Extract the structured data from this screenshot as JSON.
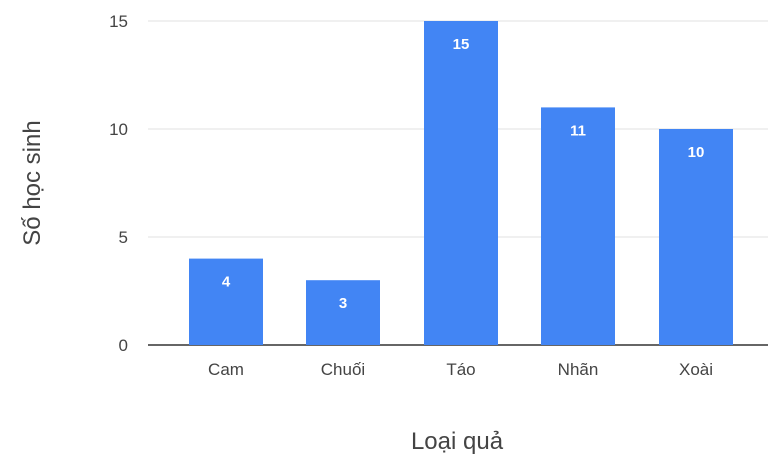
{
  "chart_data": {
    "type": "bar",
    "categories": [
      "Cam",
      "Chuối",
      "Táo",
      "Nhãn",
      "Xoài"
    ],
    "values": [
      4,
      3,
      15,
      11,
      10
    ],
    "data_labels": [
      "4",
      "3",
      "15",
      "11",
      "10"
    ],
    "xlabel": "Loại quả",
    "ylabel": "Số học sinh",
    "ylim": [
      0,
      15
    ],
    "yticks": [
      "0",
      "5",
      "10",
      "15"
    ],
    "grid": true,
    "legend": "none",
    "bar_color": "#4285f4",
    "grid_color": "#e0e0e0",
    "label_color": "#ffffff",
    "text_color": "#444444"
  }
}
